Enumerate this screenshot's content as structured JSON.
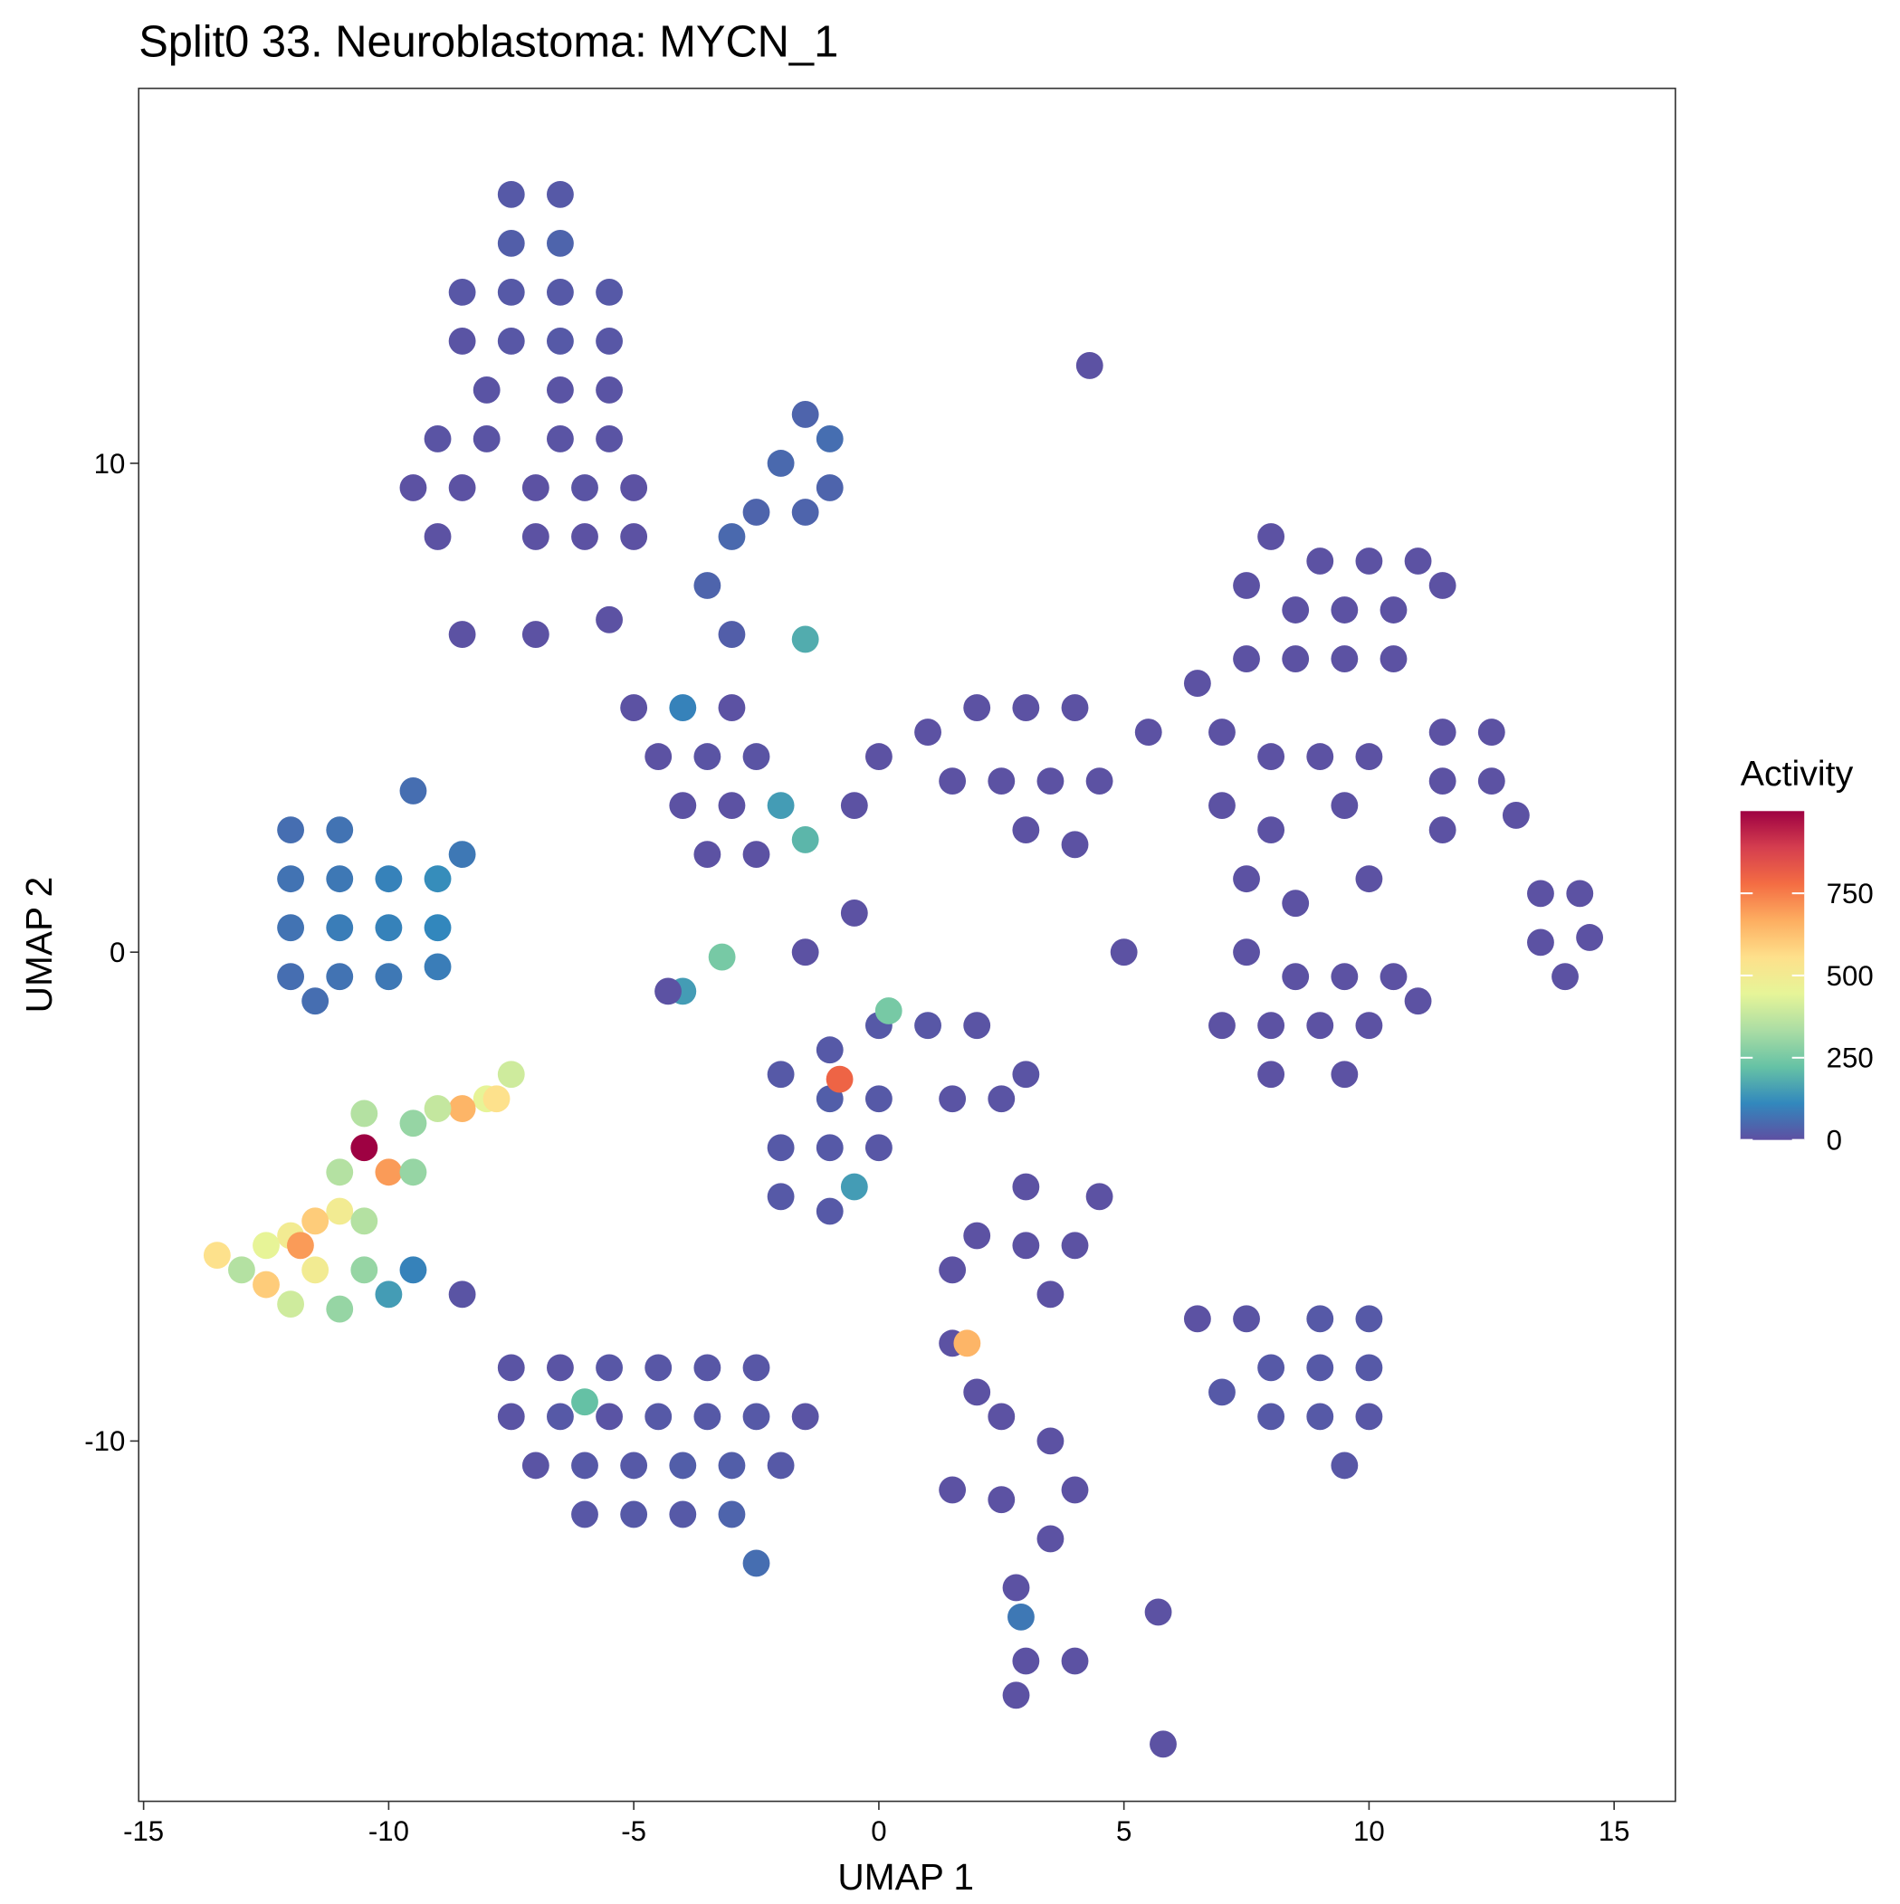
{
  "chart_data": {
    "type": "scatter",
    "title": "Split0 33. Neuroblastoma: MYCN_1",
    "xlabel": "UMAP 1",
    "ylabel": "UMAP 2",
    "xlim": [
      -15.1,
      16.25
    ],
    "ylim": [
      -17.37,
      17.67
    ],
    "xticks": [
      -15,
      -10,
      -5,
      0,
      5,
      10,
      15
    ],
    "yticks": [
      -10,
      0,
      10
    ],
    "colorbar_title": "Activity",
    "clim": [
      0,
      1000
    ],
    "colorbar_ticks": [
      0,
      250,
      500,
      750
    ],
    "colorscale": [
      "#5E4FA2",
      "#3288BD",
      "#66C2A5",
      "#ABDDA4",
      "#E6F598",
      "#FEE08B",
      "#FDAE61",
      "#F46D43",
      "#D53E4F",
      "#9E0142"
    ],
    "x": [
      -7.5,
      -6.5,
      -7.5,
      -6.5,
      -8.5,
      -7.5,
      -6.5,
      -5.5,
      -8.5,
      -7.5,
      -6.5,
      -5.5,
      -8,
      -6.5,
      -5.5,
      -9,
      -8,
      -6.5,
      -5.5,
      -9.5,
      -8.5,
      -7,
      -6,
      -5,
      -9,
      -7,
      -6,
      -5,
      -8.5,
      -7,
      -5.5,
      -1.5,
      -1,
      -2,
      -1,
      -2.5,
      -1.5,
      -3,
      -3.5,
      -3,
      -5,
      -4,
      -3,
      -4.5,
      -3.5,
      -2.5,
      -4,
      -3,
      -2,
      -3.5,
      -2.5,
      -1.5,
      -1.5,
      1,
      2,
      3,
      4,
      1.5,
      2.5,
      3.5,
      4.5,
      3,
      4,
      0,
      -0.5,
      5.5,
      6.5,
      4.3,
      8,
      9,
      10,
      11,
      7.5,
      8.5,
      9.5,
      10.5,
      11.5,
      7.5,
      8.5,
      9.5,
      10.5,
      7,
      8,
      9,
      10,
      7,
      8,
      9.5,
      7.5,
      8.5,
      10,
      7.5,
      8.5,
      9.5,
      10.5,
      7,
      8,
      9,
      10,
      11,
      8,
      9.5,
      11.5,
      12.5,
      11.5,
      12.5,
      13,
      11.5,
      13.5,
      14.3,
      13.5,
      14.5,
      14,
      -12,
      -11,
      -9.5,
      -12,
      -11,
      -10,
      -9,
      -8.5,
      -12,
      -11,
      -10,
      -9,
      -12,
      -11,
      -10,
      -9,
      -11.5,
      -7.5,
      -8,
      -8.5,
      -9,
      -9.5,
      -10.5,
      -10.5,
      -10,
      -11,
      -9.5,
      -11,
      -10.5,
      -11.5,
      -12,
      -12.5,
      -13.5,
      -12.5,
      -11.5,
      -11.8,
      -10.5,
      -12,
      -11,
      -10,
      -9.5,
      -13,
      -7.8,
      -2,
      -1,
      0,
      1,
      2,
      3,
      -1,
      0,
      1.5,
      2.5,
      -2,
      -1,
      0,
      -2,
      -1,
      -0.8,
      0.2,
      -0.5,
      3,
      4.5,
      2,
      3,
      4,
      3.5,
      1.5,
      9,
      10,
      8,
      9,
      10,
      7,
      8,
      9,
      10,
      9.5,
      6.5,
      7.5,
      -7.5,
      -6.5,
      -5.5,
      -4.5,
      -3.5,
      -2.5,
      -7.5,
      -6.5,
      -5.5,
      -4.5,
      -3.5,
      -2.5,
      -1.5,
      -7,
      -6,
      -5,
      -4,
      -3,
      -2,
      -6,
      -5,
      -4,
      -3,
      -2.5,
      -6,
      -8.5,
      1.5,
      1.8,
      2,
      2.5,
      3.5,
      4,
      3.5,
      2.8,
      2.9,
      3,
      2.8,
      4,
      5.7,
      5.8,
      -3.2,
      -4,
      -4.3,
      -1.5,
      -0.5,
      5,
      1.5,
      2.5
    ],
    "values": [
      15.5,
      15.5,
      14.5,
      14.5,
      13.5,
      13.5,
      13.5,
      13.5,
      12.5,
      12.5,
      12.5,
      12.5,
      11.5,
      11.5,
      11.5,
      10.5,
      10.5,
      10.5,
      10.5,
      9.5,
      9.5,
      9.5,
      9.5,
      9.5,
      8.5,
      8.5,
      8.5,
      8.5,
      6.5,
      6.5,
      6.8,
      11,
      10.5,
      10,
      9.5,
      9,
      9,
      8.5,
      7.5,
      6.5,
      5,
      5,
      5,
      4,
      4,
      4,
      3,
      3,
      3,
      2,
      2,
      2.3,
      6.4,
      4.5,
      5,
      5,
      5,
      3.5,
      3.5,
      3.5,
      3.5,
      2.5,
      2.2,
      4,
      3,
      4.5,
      5.5,
      12,
      8.5,
      8,
      8,
      8,
      7.5,
      7,
      7,
      7,
      7.5,
      6,
      6,
      6,
      6,
      4.5,
      4,
      4,
      4,
      3,
      2.5,
      3,
      1.5,
      1,
      1.5,
      0,
      -0.5,
      -0.5,
      -0.5,
      -1.5,
      -1.5,
      -1.5,
      -1.5,
      -1,
      -2.5,
      -2.5,
      4.5,
      4.5,
      3.5,
      3.5,
      2.8,
      2.5,
      1.2,
      1.2,
      0.2,
      0.3,
      -0.5,
      2.5,
      2.5,
      3.3,
      1.5,
      1.5,
      1.5,
      1.5,
      2,
      0.5,
      0.5,
      0.5,
      0.5,
      -0.5,
      -0.5,
      -0.5,
      -0.3,
      -1,
      -2.5,
      -3,
      -3.2,
      -3.2,
      -3.5,
      -3.3,
      -4,
      -4.5,
      -4.5,
      -4.5,
      -5.3,
      -5.5,
      -5.5,
      -5.8,
      -6,
      -6.2,
      -6.8,
      -6.5,
      -6,
      -6.5,
      -7.2,
      -7.3,
      -7,
      -6.5,
      -6.5,
      -3,
      -2.5,
      -2,
      -1.5,
      -1.5,
      -1.5,
      -2.5,
      -3,
      -3,
      -3,
      -3,
      -4,
      -4,
      -4,
      -5,
      -5.3,
      -2.6,
      -1.2,
      -4.8,
      -4.8,
      -5,
      -5.8,
      -6,
      -6,
      -7,
      -6.5,
      -7.5,
      -7.5,
      -8.5,
      -8.5,
      -8.5,
      -9,
      -9.5,
      -9.5,
      -9.5,
      -10.5,
      -7.5,
      -7.5,
      -8.5,
      -8.5,
      -8.5,
      -8.5,
      -8.5,
      -8.5,
      -9.5,
      -9.5,
      -9.5,
      -9.5,
      -9.5,
      -9.5,
      -9.5,
      -10.5,
      -10.5,
      -10.5,
      -10.5,
      -10.5,
      -10.5,
      -11.5,
      -11.5,
      -11.5,
      -11.5,
      -12.5,
      -9.2,
      -7,
      -8,
      -8,
      -9,
      -9.5,
      -10,
      -11,
      -12,
      -13,
      -13.6,
      -14.5,
      -15.2,
      -14.5,
      -13.5,
      -16.2,
      -0.1,
      -0.8,
      -0.8,
      0,
      0.8,
      0,
      -11,
      -11.2
    ],
    "activity": [
      20,
      20,
      30,
      40,
      15,
      20,
      20,
      20,
      10,
      15,
      20,
      15,
      10,
      10,
      10,
      10,
      10,
      10,
      10,
      5,
      5,
      5,
      10,
      5,
      5,
      5,
      5,
      5,
      5,
      5,
      5,
      40,
      60,
      50,
      40,
      40,
      40,
      50,
      40,
      30,
      5,
      100,
      5,
      5,
      10,
      10,
      5,
      5,
      150,
      5,
      5,
      200,
      180,
      5,
      5,
      5,
      5,
      5,
      5,
      5,
      5,
      5,
      5,
      5,
      5,
      5,
      5,
      5,
      5,
      5,
      5,
      5,
      5,
      5,
      5,
      5,
      5,
      5,
      5,
      5,
      5,
      5,
      5,
      5,
      5,
      5,
      5,
      5,
      5,
      5,
      5,
      5,
      5,
      5,
      5,
      5,
      5,
      5,
      5,
      5,
      5,
      5,
      5,
      5,
      5,
      5,
      5,
      5,
      5,
      5,
      5,
      5,
      5,
      60,
      70,
      60,
      70,
      80,
      100,
      120,
      80,
      70,
      90,
      100,
      110,
      60,
      70,
      80,
      90,
      60,
      400,
      450,
      650,
      380,
      300,
      350,
      1000,
      700,
      350,
      300,
      500,
      350,
      600,
      500,
      450,
      550,
      600,
      500,
      700,
      300,
      400,
      300,
      150,
      100,
      350,
      550,
      20,
      20,
      20,
      15,
      10,
      10,
      30,
      20,
      10,
      10,
      20,
      20,
      15,
      20,
      20,
      800,
      250,
      150,
      5,
      5,
      5,
      5,
      5,
      5,
      5,
      20,
      20,
      20,
      20,
      20,
      20,
      20,
      20,
      15,
      15,
      5,
      10,
      10,
      10,
      15,
      15,
      15,
      15,
      10,
      20,
      10,
      20,
      20,
      20,
      10,
      10,
      20,
      20,
      30,
      30,
      20,
      15,
      20,
      20,
      40,
      60,
      220,
      10,
      5,
      650,
      5,
      5,
      5,
      5,
      5,
      5,
      80,
      5,
      5,
      5,
      5,
      5,
      250,
      150,
      5,
      5,
      5,
      5,
      5,
      5
    ]
  }
}
